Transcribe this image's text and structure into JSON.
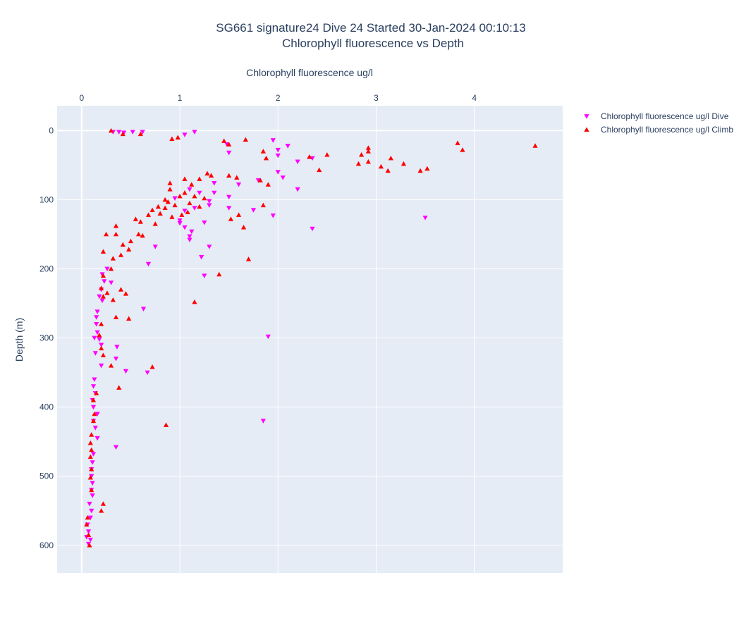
{
  "title": {
    "line1": "SG661 signature24 Dive 24 Started 30-Jan-2024 00:10:13",
    "line2": "Chlorophyll fluorescence vs Depth"
  },
  "colors": {
    "plot_background": "#e5ecf6",
    "grid": "#ffffff",
    "text": "#2a3f5f",
    "dive": "#ff00ff",
    "climb": "#ff0000"
  },
  "chart_data": {
    "type": "scatter",
    "title": "SG661 signature24 Dive 24 Started 30-Jan-2024 00:10:13 Chlorophyll fluorescence vs Depth",
    "xlabel": "Chlorophyll fluorescence ug/l",
    "ylabel": "Depth (m)",
    "x_axis_position": "top",
    "y_reversed": true,
    "xlim": [
      -0.25,
      4.9
    ],
    "ylim": [
      640,
      -36
    ],
    "x_ticks": [
      0,
      1,
      2,
      3,
      4
    ],
    "y_ticks": [
      0,
      100,
      200,
      300,
      400,
      500,
      600
    ],
    "grid": true,
    "legend_position": "top-right",
    "series": [
      {
        "name": "Chlorophyll fluorescence ug/l Dive",
        "marker": "triangle-down",
        "color": "#ff00ff",
        "points": [
          [
            0.32,
            2
          ],
          [
            0.38,
            2
          ],
          [
            0.43,
            3
          ],
          [
            0.52,
            2
          ],
          [
            0.62,
            2
          ],
          [
            1.15,
            2
          ],
          [
            1.05,
            6
          ],
          [
            1.95,
            14
          ],
          [
            2.1,
            22
          ],
          [
            1.48,
            20
          ],
          [
            2.0,
            28
          ],
          [
            2.1,
            22
          ],
          [
            1.5,
            32
          ],
          [
            2.2,
            45
          ],
          [
            2.0,
            36
          ],
          [
            2.35,
            40
          ],
          [
            2.0,
            60
          ],
          [
            2.05,
            68
          ],
          [
            2.2,
            85
          ],
          [
            1.8,
            72
          ],
          [
            1.6,
            78
          ],
          [
            1.5,
            96
          ],
          [
            1.35,
            76
          ],
          [
            1.35,
            90
          ],
          [
            1.3,
            102
          ],
          [
            1.2,
            90
          ],
          [
            1.1,
            85
          ],
          [
            0.95,
            98
          ],
          [
            1.05,
            116
          ],
          [
            1.0,
            130
          ],
          [
            1.15,
            112
          ],
          [
            1.3,
            108
          ],
          [
            1.5,
            112
          ],
          [
            1.75,
            115
          ],
          [
            1.95,
            123
          ],
          [
            1.25,
            133
          ],
          [
            1.12,
            146
          ],
          [
            1.05,
            140
          ],
          [
            1.0,
            134
          ],
          [
            1.1,
            153
          ],
          [
            1.1,
            158
          ],
          [
            1.3,
            168
          ],
          [
            1.22,
            183
          ],
          [
            1.25,
            210
          ],
          [
            0.75,
            168
          ],
          [
            0.68,
            193
          ],
          [
            3.5,
            126
          ],
          [
            2.35,
            142
          ],
          [
            0.26,
            200
          ],
          [
            0.21,
            208
          ],
          [
            0.23,
            218
          ],
          [
            0.3,
            220
          ],
          [
            0.2,
            230
          ],
          [
            0.18,
            240
          ],
          [
            0.21,
            246
          ],
          [
            0.16,
            262
          ],
          [
            0.63,
            258
          ],
          [
            0.15,
            280
          ],
          [
            0.16,
            292
          ],
          [
            0.13,
            300
          ],
          [
            0.18,
            302
          ],
          [
            0.2,
            310
          ],
          [
            0.36,
            313
          ],
          [
            0.14,
            322
          ],
          [
            0.35,
            330
          ],
          [
            0.2,
            340
          ],
          [
            0.45,
            348
          ],
          [
            0.67,
            350
          ],
          [
            0.13,
            360
          ],
          [
            0.12,
            370
          ],
          [
            0.14,
            380
          ],
          [
            0.11,
            390
          ],
          [
            0.12,
            400
          ],
          [
            0.16,
            410
          ],
          [
            0.12,
            420
          ],
          [
            1.85,
            420
          ],
          [
            0.14,
            430
          ],
          [
            0.16,
            445
          ],
          [
            0.35,
            458
          ],
          [
            0.12,
            468
          ],
          [
            0.11,
            480
          ],
          [
            0.1,
            490
          ],
          [
            0.1,
            500
          ],
          [
            0.11,
            510
          ],
          [
            0.1,
            520
          ],
          [
            0.11,
            528
          ],
          [
            0.08,
            540
          ],
          [
            0.1,
            550
          ],
          [
            0.09,
            560
          ],
          [
            0.06,
            570
          ],
          [
            0.07,
            580
          ],
          [
            0.05,
            588
          ],
          [
            0.09,
            592
          ],
          [
            0.07,
            598
          ],
          [
            1.9,
            298
          ],
          [
            0.15,
            270
          ]
        ]
      },
      {
        "name": "Chlorophyll fluorescence ug/l Climb",
        "marker": "triangle-up",
        "color": "#ff0000",
        "points": [
          [
            0.3,
            0
          ],
          [
            0.42,
            5
          ],
          [
            0.6,
            5
          ],
          [
            0.92,
            12
          ],
          [
            0.98,
            10
          ],
          [
            1.45,
            15
          ],
          [
            1.5,
            20
          ],
          [
            1.67,
            13
          ],
          [
            1.85,
            30
          ],
          [
            1.88,
            40
          ],
          [
            2.32,
            38
          ],
          [
            2.5,
            35
          ],
          [
            2.42,
            57
          ],
          [
            2.82,
            48
          ],
          [
            2.85,
            35
          ],
          [
            2.92,
            25
          ],
          [
            2.92,
            30
          ],
          [
            2.92,
            45
          ],
          [
            3.05,
            52
          ],
          [
            3.12,
            58
          ],
          [
            3.15,
            40
          ],
          [
            3.28,
            48
          ],
          [
            3.45,
            58
          ],
          [
            3.52,
            55
          ],
          [
            3.83,
            18
          ],
          [
            3.88,
            28
          ],
          [
            4.62,
            22
          ],
          [
            1.5,
            65
          ],
          [
            1.58,
            68
          ],
          [
            1.82,
            72
          ],
          [
            1.9,
            78
          ],
          [
            1.85,
            108
          ],
          [
            1.6,
            122
          ],
          [
            1.65,
            140
          ],
          [
            1.7,
            186
          ],
          [
            1.52,
            128
          ],
          [
            1.4,
            208
          ],
          [
            1.15,
            248
          ],
          [
            1.28,
            62
          ],
          [
            1.32,
            65
          ],
          [
            1.2,
            70
          ],
          [
            1.12,
            78
          ],
          [
            1.05,
            70
          ],
          [
            0.9,
            76
          ],
          [
            0.9,
            85
          ],
          [
            1.05,
            90
          ],
          [
            1.0,
            95
          ],
          [
            0.85,
            100
          ],
          [
            0.88,
            103
          ],
          [
            0.95,
            108
          ],
          [
            1.1,
            105
          ],
          [
            1.08,
            118
          ],
          [
            1.02,
            122
          ],
          [
            0.92,
            125
          ],
          [
            0.8,
            120
          ],
          [
            0.72,
            115
          ],
          [
            0.68,
            122
          ],
          [
            0.6,
            132
          ],
          [
            0.58,
            150
          ],
          [
            0.5,
            160
          ],
          [
            0.48,
            172
          ],
          [
            0.42,
            165
          ],
          [
            0.4,
            180
          ],
          [
            0.32,
            185
          ],
          [
            0.3,
            200
          ],
          [
            0.22,
            210
          ],
          [
            0.2,
            228
          ],
          [
            0.22,
            240
          ],
          [
            0.26,
            235
          ],
          [
            0.32,
            245
          ],
          [
            0.4,
            230
          ],
          [
            0.45,
            236
          ],
          [
            0.48,
            272
          ],
          [
            0.35,
            270
          ],
          [
            0.2,
            280
          ],
          [
            0.18,
            296
          ],
          [
            0.2,
            315
          ],
          [
            0.22,
            325
          ],
          [
            0.3,
            340
          ],
          [
            0.72,
            342
          ],
          [
            0.38,
            372
          ],
          [
            0.15,
            380
          ],
          [
            0.12,
            390
          ],
          [
            0.13,
            410
          ],
          [
            0.12,
            420
          ],
          [
            0.86,
            426
          ],
          [
            0.1,
            440
          ],
          [
            0.09,
            452
          ],
          [
            0.1,
            462
          ],
          [
            0.09,
            472
          ],
          [
            0.1,
            490
          ],
          [
            0.09,
            502
          ],
          [
            0.1,
            520
          ],
          [
            0.22,
            540
          ],
          [
            0.2,
            550
          ],
          [
            0.06,
            560
          ],
          [
            0.05,
            570
          ],
          [
            0.07,
            585
          ],
          [
            0.08,
            600
          ],
          [
            0.25,
            150
          ],
          [
            0.22,
            175
          ],
          [
            0.35,
            150
          ],
          [
            0.35,
            138
          ],
          [
            0.62,
            152
          ],
          [
            0.55,
            128
          ],
          [
            0.75,
            135
          ],
          [
            0.85,
            112
          ],
          [
            0.78,
            110
          ],
          [
            1.15,
            95
          ],
          [
            1.25,
            98
          ],
          [
            1.2,
            110
          ]
        ]
      }
    ]
  }
}
